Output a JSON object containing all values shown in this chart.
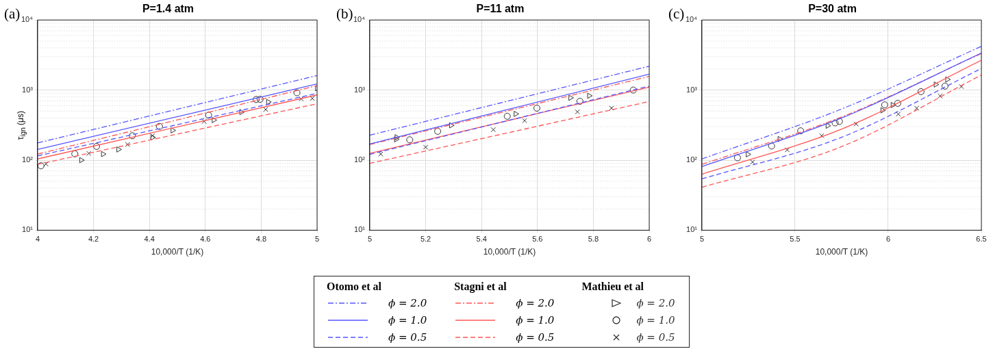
{
  "chart_data": [
    {
      "type": "line",
      "title": "P=1.4 atm",
      "xlabel": "10,000/T (1/K)",
      "ylabel": "τ$_{ign}$ (μs)",
      "annotations": [
        "(a)"
      ],
      "log": "y",
      "grid": true,
      "legend": "bottom",
      "legend_title": [
        "Otomo et al",
        "Stagni et al",
        "Mathieu et al"
      ],
      "xlim": [
        4,
        5
      ],
      "xticks": [
        4,
        4.2,
        4.4,
        4.6,
        4.8,
        5
      ],
      "ylim": [
        10,
        10000
      ],
      "yticks": [
        {
          "value": 10,
          "label": "10¹"
        },
        {
          "value": 100,
          "label": "10²"
        },
        {
          "value": 1000,
          "label": "10³"
        },
        {
          "value": 10000,
          "label": "10⁴"
        }
      ],
      "series": [
        {
          "name": "ϕ = 2.0",
          "type": "line",
          "line_style": "dashdot",
          "color": "#5555ff",
          "x": [
            4,
            5
          ],
          "values": [
            176,
            1610
          ]
        },
        {
          "name": "ϕ = 1.0",
          "type": "line",
          "line_style": "solid",
          "color": "#5555ff",
          "x": [
            4,
            5
          ],
          "values": [
            142,
            1225
          ]
        },
        {
          "name": "ϕ = 0.5",
          "type": "line",
          "line_style": "dashed",
          "color": "#5555ff",
          "x": [
            4,
            5
          ],
          "values": [
            115,
            897
          ]
        },
        {
          "name": "ϕ = 2.0",
          "type": "line",
          "line_style": "dashdot",
          "color": "#ff5555",
          "x": [
            4,
            5
          ],
          "values": [
            122,
            1155
          ]
        },
        {
          "name": "ϕ = 1.0",
          "type": "line",
          "line_style": "solid",
          "color": "#ff5555",
          "x": [
            4,
            5
          ],
          "values": [
            104,
            852
          ]
        },
        {
          "name": "ϕ = 0.5",
          "type": "line",
          "line_style": "dashed",
          "color": "#ff5555",
          "x": [
            4,
            5
          ],
          "values": [
            87,
            638
          ]
        },
        {
          "name": "ϕ = 2.0",
          "type": "scatter",
          "marker": "triangle",
          "color": "#333333",
          "x": [
            4.156,
            4.234,
            4.289,
            4.411,
            4.483,
            4.63,
            4.729,
            4.825,
            5.0
          ],
          "values": [
            100,
            122,
            142,
            211,
            266,
            373,
            485,
            676,
            1059
          ]
        },
        {
          "name": "ϕ = 1.0",
          "type": "scatter",
          "marker": "circle",
          "color": "#333333",
          "x": [
            4.012,
            4.133,
            4.211,
            4.339,
            4.436,
            4.612,
            4.782,
            4.796,
            4.928
          ],
          "values": [
            83,
            123,
            157,
            223,
            303,
            438,
            733,
            738,
            916
          ]
        },
        {
          "name": "ϕ = 0.5",
          "type": "scatter",
          "marker": "cross",
          "color": "#333333",
          "x": [
            4.03,
            4.183,
            4.322,
            4.411,
            4.596,
            4.816,
            4.943,
            4.983
          ],
          "values": [
            88,
            125,
            167,
            223,
            357,
            528,
            748,
            760
          ]
        }
      ]
    },
    {
      "type": "line",
      "title": "P=11 atm",
      "xlabel": "10,000/T (1/K)",
      "annotations": [
        "(b)"
      ],
      "log": "y",
      "grid": true,
      "xlim": [
        5,
        6
      ],
      "xticks": [
        5,
        5.2,
        5.4,
        5.6,
        5.8,
        6
      ],
      "ylim": [
        10,
        10000
      ],
      "yticks": [
        {
          "value": 10,
          "label": "10¹"
        },
        {
          "value": 100,
          "label": "10²"
        },
        {
          "value": 1000,
          "label": "10³"
        },
        {
          "value": 10000,
          "label": "10⁴"
        }
      ],
      "series": [
        {
          "type": "line",
          "line_style": "dashdot",
          "color": "#5555ff",
          "x": [
            5,
            6
          ],
          "values": [
            227,
            2190
          ]
        },
        {
          "type": "line",
          "line_style": "solid",
          "color": "#5555ff",
          "x": [
            5,
            6
          ],
          "values": [
            170,
            1683
          ]
        },
        {
          "type": "line",
          "line_style": "dashed",
          "color": "#5555ff",
          "x": [
            5,
            6
          ],
          "values": [
            121,
            1140
          ]
        },
        {
          "type": "line",
          "line_style": "dashdot",
          "color": "#ff5555",
          "x": [
            5,
            6
          ],
          "values": [
            167,
            1567
          ]
        },
        {
          "type": "line",
          "line_style": "solid",
          "color": "#ff5555",
          "x": [
            5,
            6
          ],
          "values": [
            125,
            1100
          ]
        },
        {
          "type": "line",
          "line_style": "dashed",
          "color": "#ff5555",
          "x": [
            5,
            6
          ],
          "values": [
            90,
            686
          ]
        },
        {
          "type": "scatter",
          "marker": "triangle",
          "color": "#333333",
          "x": [
            5.094,
            5.096,
            5.291,
            5.522,
            5.718,
            5.785
          ],
          "values": [
            198,
            212,
            314,
            457,
            776,
            829
          ]
        },
        {
          "type": "scatter",
          "marker": "circle",
          "color": "#333333",
          "x": [
            5.143,
            5.243,
            5.492,
            5.598,
            5.752,
            5.943
          ],
          "values": [
            195,
            258,
            423,
            552,
            692,
            1000
          ]
        },
        {
          "type": "scatter",
          "marker": "cross",
          "color": "#333333",
          "x": [
            5.039,
            5.2,
            5.442,
            5.554,
            5.743,
            5.865
          ],
          "values": [
            122,
            153,
            272,
            366,
            489,
            552
          ]
        }
      ]
    },
    {
      "type": "line",
      "title": "P=30 atm",
      "xlabel": "10,000/T (1/K)",
      "annotations": [
        "(c)"
      ],
      "log": "y",
      "grid": true,
      "xlim": [
        5,
        6.5
      ],
      "xticks": [
        5,
        5.5,
        6,
        6.5
      ],
      "ylim": [
        10,
        10000
      ],
      "yticks": [
        {
          "value": 10,
          "label": "10¹"
        },
        {
          "value": 100,
          "label": "10²"
        },
        {
          "value": 1000,
          "label": "10³"
        },
        {
          "value": 10000,
          "label": "10⁴"
        }
      ],
      "series": [
        {
          "type": "line",
          "line_style": "dashdot",
          "color": "#5555ff",
          "x": [
            5,
            5.75,
            6.5
          ],
          "values": [
            104,
            537,
            4200
          ]
        },
        {
          "type": "line",
          "line_style": "solid",
          "color": "#5555ff",
          "x": [
            5,
            5.75,
            6.5
          ],
          "values": [
            81,
            399,
            3370
          ]
        },
        {
          "type": "line",
          "line_style": "dashed",
          "color": "#5555ff",
          "x": [
            5,
            5.75,
            6.5
          ],
          "values": [
            54,
            212,
            2032
          ]
        },
        {
          "type": "line",
          "line_style": "dashdot",
          "color": "#ff5555",
          "x": [
            5,
            5.75,
            6.5
          ],
          "values": [
            87,
            413,
            3325
          ]
        },
        {
          "type": "line",
          "line_style": "solid",
          "color": "#ff5555",
          "x": [
            5,
            5.75,
            6.5
          ],
          "values": [
            63,
            277,
            2660
          ]
        },
        {
          "type": "line",
          "line_style": "dashed",
          "color": "#ff5555",
          "x": [
            5,
            5.75,
            6.5
          ],
          "values": [
            41,
            156,
            1637
          ]
        },
        {
          "type": "scatter",
          "marker": "triangle",
          "color": "#333333",
          "x": [
            5.246,
            5.417,
            5.675,
            5.969,
            6.024,
            6.255,
            6.317
          ],
          "values": [
            121,
            200,
            310,
            514,
            611,
            1199,
            1416
          ]
        },
        {
          "type": "scatter",
          "marker": "circle",
          "color": "#333333",
          "x": [
            5.191,
            5.374,
            5.53,
            5.715,
            5.738,
            5.981,
            6.051,
            6.176,
            6.305
          ],
          "values": [
            108,
            159,
            262,
            340,
            357,
            615,
            647,
            950,
            1140
          ]
        },
        {
          "type": "scatter",
          "marker": "cross",
          "color": "#333333",
          "x": [
            5.272,
            5.458,
            5.643,
            5.828,
            6.054,
            6.153,
            6.279,
            6.393
          ],
          "values": [
            94,
            140,
            223,
            328,
            454,
            552,
            822,
            1122
          ]
        }
      ]
    }
  ]
}
